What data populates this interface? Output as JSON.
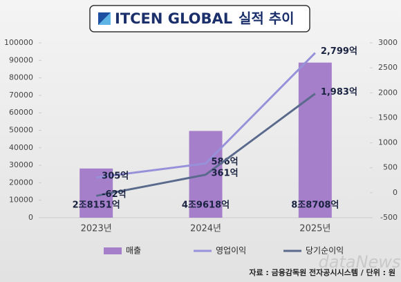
{
  "chart_data": {
    "type": "combo",
    "brand": "ITCEN GLOBAL",
    "title": "실적 추이",
    "categories": [
      "2023년",
      "2024년",
      "2025년"
    ],
    "series": [
      {
        "name": "매출",
        "type": "bar",
        "color": "#a67fcb",
        "values": [
          28151,
          49618,
          88708
        ],
        "value_labels": [
          "2조8151억",
          "4조9618억",
          "8조8708억"
        ]
      },
      {
        "name": "영업이익",
        "type": "line",
        "axis": "y2",
        "color": "#9791d9",
        "values": [
          305,
          586,
          2799
        ],
        "value_labels": [
          "305억",
          "586억",
          "2,799억"
        ]
      },
      {
        "name": "당기순이익",
        "type": "line",
        "axis": "y2",
        "color": "#5a6a8c",
        "values": [
          -62,
          361,
          1983
        ],
        "value_labels": [
          "-62억",
          "361억",
          "1,983억"
        ]
      }
    ],
    "ylim": [
      0,
      100000
    ],
    "yticks": [
      0,
      10000,
      20000,
      30000,
      40000,
      50000,
      60000,
      70000,
      80000,
      90000,
      100000
    ],
    "y2lim": [
      -500,
      3000
    ],
    "y2ticks": [
      -500,
      0,
      500,
      1000,
      1500,
      2000,
      2500,
      3000
    ],
    "source": "자료 : 금융감독원 전자공시시스템 / 단위 : 원",
    "watermark": "dataNews"
  }
}
